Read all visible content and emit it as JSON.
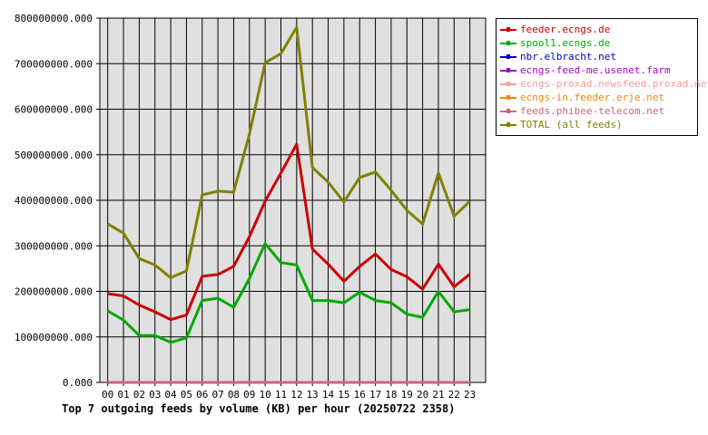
{
  "chart_data": {
    "type": "line",
    "title": "Top 7 outgoing feeds by volume (KB) per hour (20250722 2358)",
    "xlabel": "",
    "ylabel": "",
    "x": [
      "00",
      "01",
      "02",
      "03",
      "04",
      "05",
      "06",
      "07",
      "08",
      "09",
      "10",
      "11",
      "12",
      "13",
      "14",
      "15",
      "16",
      "17",
      "18",
      "19",
      "20",
      "21",
      "22",
      "23"
    ],
    "ylim": [
      0,
      800000000
    ],
    "yticks": [
      0,
      100000000,
      200000000,
      300000000,
      400000000,
      500000000,
      600000000,
      700000000,
      800000000
    ],
    "ytick_labels": [
      "0.000",
      "100000000.000",
      "200000000.000",
      "300000000.000",
      "400000000.000",
      "500000000.000",
      "600000000.000",
      "700000000.000",
      "800000000.000"
    ],
    "grid": true,
    "legend_position": "top-right",
    "series": [
      {
        "name": "feeder.ecngs.de",
        "color": "#cc0000",
        "values": [
          195000000,
          190000000,
          170000000,
          155000000,
          138000000,
          148000000,
          233000000,
          237000000,
          255000000,
          320000000,
          398000000,
          460000000,
          523000000,
          293000000,
          260000000,
          222000000,
          255000000,
          282000000,
          248000000,
          232000000,
          205000000,
          260000000,
          210000000,
          238000000
        ]
      },
      {
        "name": "spool1.ecngs.de",
        "color": "#00aa00",
        "values": [
          157000000,
          137000000,
          103000000,
          103000000,
          88000000,
          98000000,
          180000000,
          185000000,
          165000000,
          228000000,
          305000000,
          263000000,
          258000000,
          180000000,
          180000000,
          175000000,
          198000000,
          180000000,
          175000000,
          150000000,
          143000000,
          200000000,
          155000000,
          160000000
        ]
      },
      {
        "name": "nbr.elbracht.net",
        "color": "#0000cc",
        "values": [
          0,
          0,
          0,
          0,
          0,
          0,
          0,
          0,
          0,
          0,
          0,
          0,
          0,
          0,
          0,
          0,
          0,
          0,
          0,
          0,
          0,
          0,
          0,
          0
        ]
      },
      {
        "name": "ecngs-feed-me.usenet.farm",
        "color": "#aa00cc",
        "values": [
          0,
          0,
          0,
          0,
          0,
          0,
          0,
          0,
          0,
          0,
          0,
          0,
          0,
          0,
          0,
          0,
          0,
          0,
          0,
          0,
          0,
          0,
          0,
          0
        ]
      },
      {
        "name": "ecngs-proxad.newsfeed.proxad.net",
        "color": "#ff9999",
        "values": [
          0,
          0,
          0,
          0,
          0,
          0,
          0,
          0,
          0,
          0,
          0,
          0,
          0,
          0,
          0,
          0,
          0,
          0,
          0,
          0,
          0,
          0,
          0,
          0
        ]
      },
      {
        "name": "ecngs-in.feeder.erje.net",
        "color": "#ee8800",
        "values": [
          0,
          0,
          0,
          0,
          0,
          0,
          0,
          0,
          0,
          0,
          0,
          0,
          0,
          0,
          0,
          0,
          0,
          0,
          0,
          0,
          0,
          0,
          0,
          0
        ]
      },
      {
        "name": "feeds.phibee-telecom.net",
        "color": "#cc6677",
        "values": [
          0,
          0,
          0,
          0,
          0,
          0,
          0,
          0,
          0,
          0,
          0,
          0,
          0,
          0,
          0,
          0,
          0,
          0,
          0,
          0,
          0,
          0,
          0,
          0
        ]
      },
      {
        "name": "TOTAL (all feeds)",
        "color": "#808000",
        "values": [
          348000000,
          328000000,
          272000000,
          258000000,
          230000000,
          245000000,
          412000000,
          420000000,
          418000000,
          545000000,
          702000000,
          722000000,
          780000000,
          472000000,
          440000000,
          396000000,
          450000000,
          462000000,
          422000000,
          378000000,
          348000000,
          460000000,
          365000000,
          398000000
        ]
      }
    ]
  }
}
